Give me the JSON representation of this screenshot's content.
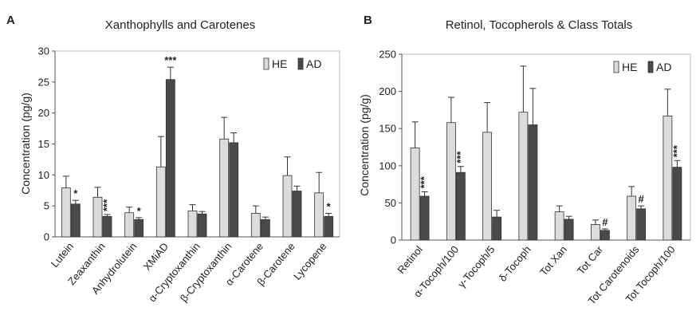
{
  "chart_data": [
    {
      "panel": "A",
      "type": "bar",
      "title": "Xanthophylls and Carotenes",
      "ylabel": "Concentration (pg/g)",
      "xlabel": "",
      "ylim": [
        0,
        30
      ],
      "yticks": [
        "0",
        "5",
        "10",
        "15",
        "20",
        "25",
        "30"
      ],
      "grid": false,
      "legend_position": "top-right",
      "categories": [
        "Lutein",
        "Zeaxanthin",
        "Anhydrolutein",
        "XMiAD",
        "α-Cryptoxanthin",
        "β-Cryptoxanthin",
        "α-Carotene",
        "β-Carotene",
        "Lycopene"
      ],
      "series": [
        {
          "name": "HE",
          "values": [
            7.9,
            6.4,
            3.9,
            11.3,
            4.2,
            15.8,
            3.8,
            9.9,
            7.1
          ],
          "errors": [
            1.9,
            1.6,
            0.9,
            4.9,
            1.0,
            3.5,
            1.2,
            3.0,
            3.3
          ]
        },
        {
          "name": "AD",
          "values": [
            5.3,
            3.3,
            2.8,
            25.4,
            3.7,
            15.2,
            2.8,
            7.4,
            3.3
          ],
          "errors": [
            0.6,
            0.3,
            0.3,
            2.0,
            0.4,
            1.6,
            0.4,
            0.8,
            0.5
          ]
        }
      ],
      "annotations": [
        "*",
        "***",
        "*",
        "***",
        "",
        "",
        "",
        "",
        "*"
      ],
      "colors": {
        "HE": "#dcdcdc",
        "AD": "#4a4a4a"
      }
    },
    {
      "panel": "B",
      "type": "bar",
      "title": "Retinol, Tocopherols & Class Totals",
      "ylabel": "Concentration (pg/g)",
      "xlabel": "",
      "ylim": [
        0,
        250
      ],
      "yticks": [
        "0",
        "50",
        "100",
        "150",
        "200",
        "250"
      ],
      "grid": false,
      "legend_position": "top-right",
      "categories": [
        "Retinol",
        "α-Tocoph/100",
        "γ-Tocoph/5",
        "δ-Tocoph",
        "Tot Xan",
        "Tot Car",
        "Tot Carotenoids",
        "Tot Tocoph/100"
      ],
      "series": [
        {
          "name": "HE",
          "values": [
            124,
            158,
            145,
            172,
            38,
            21,
            59,
            167
          ],
          "errors": [
            35,
            34,
            40,
            62,
            8,
            6,
            13,
            36
          ]
        },
        {
          "name": "AD",
          "values": [
            59,
            91,
            31,
            155,
            28,
            13,
            42,
            98
          ],
          "errors": [
            6,
            8,
            9,
            49,
            4,
            2,
            4,
            9
          ]
        }
      ],
      "annotations": [
        "***",
        "***",
        "",
        "",
        "",
        "#",
        "#",
        "***"
      ],
      "colors": {
        "HE": "#dcdcdc",
        "AD": "#4a4a4a"
      }
    }
  ]
}
